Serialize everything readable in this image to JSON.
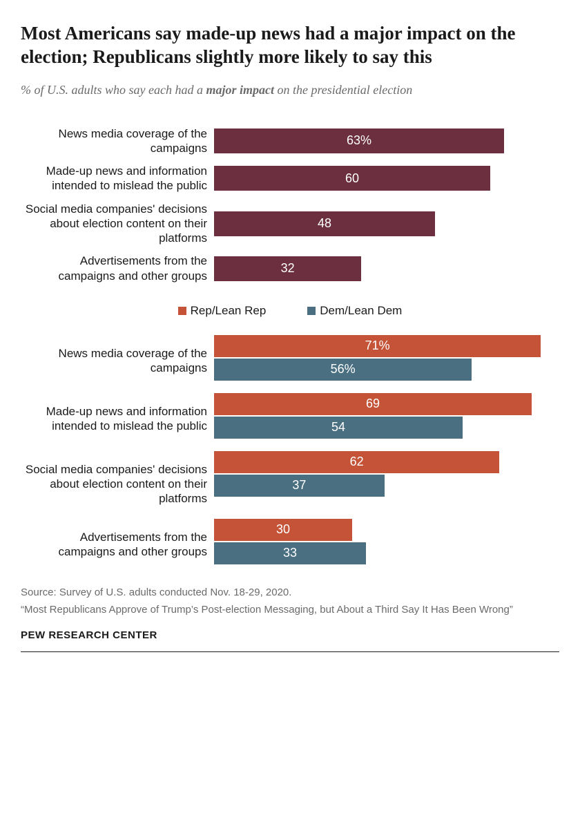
{
  "title": "Most Americans say made-up news had a major impact on the election; Republicans slightly more likely to say this",
  "subtitle_pre": "% of U.S. adults who say each had a ",
  "subtitle_emph": "major impact",
  "subtitle_post": " on the presidential election",
  "colors": {
    "overall": "#6b2f3f",
    "rep": "#c55338",
    "dem": "#496f81",
    "text": "#1a1a1a",
    "muted": "#6a6a6a",
    "bg": "#ffffff"
  },
  "overall_chart": {
    "type": "bar",
    "max": 75,
    "items": [
      {
        "label": "News media coverage of the campaigns",
        "value": 63,
        "display": "63%"
      },
      {
        "label": "Made-up news and information intended to mislead the public",
        "value": 60,
        "display": "60"
      },
      {
        "label": "Social media companies' decisions about election content on their platforms",
        "value": 48,
        "display": "48"
      },
      {
        "label": "Advertisements from the campaigns and other groups",
        "value": 32,
        "display": "32"
      }
    ]
  },
  "legend": {
    "rep": "Rep/Lean Rep",
    "dem": "Dem/Lean Dem"
  },
  "party_chart": {
    "type": "grouped-bar",
    "max": 75,
    "groups": [
      {
        "label": "News media coverage of the campaigns",
        "rep": {
          "value": 71,
          "display": "71%"
        },
        "dem": {
          "value": 56,
          "display": "56%"
        }
      },
      {
        "label": "Made-up news and information intended to mislead the public",
        "rep": {
          "value": 69,
          "display": "69"
        },
        "dem": {
          "value": 54,
          "display": "54"
        }
      },
      {
        "label": "Social media companies' decisions about election content on their platforms",
        "rep": {
          "value": 62,
          "display": "62"
        },
        "dem": {
          "value": 37,
          "display": "37"
        }
      },
      {
        "label": "Advertisements from the campaigns and other groups",
        "rep": {
          "value": 30,
          "display": "30"
        },
        "dem": {
          "value": 33,
          "display": "33"
        }
      }
    ]
  },
  "source": "Source: Survey of U.S. adults conducted Nov. 18-29, 2020.",
  "note": "“Most Republicans Approve of Trump’s Post-election Messaging, but About a Third Say It Has Been Wrong”",
  "attribution": "PEW RESEARCH CENTER"
}
